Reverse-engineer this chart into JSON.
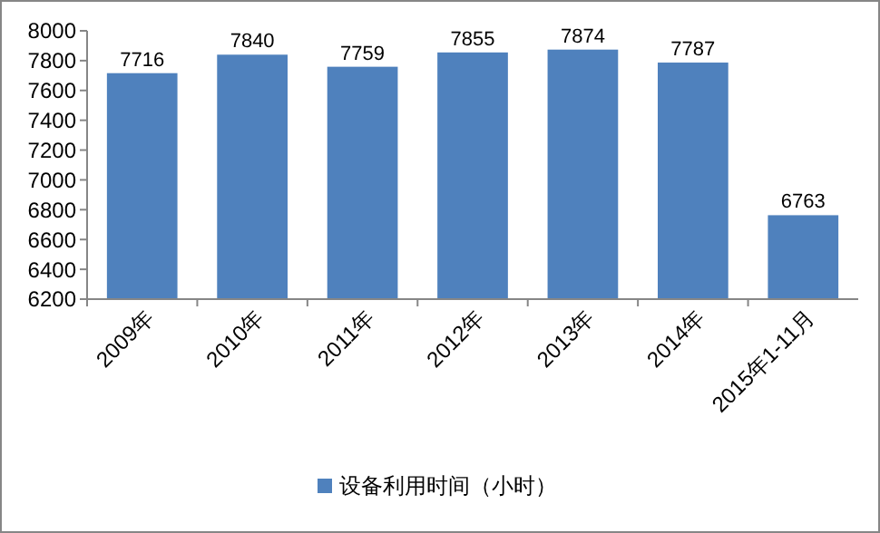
{
  "chart_data": {
    "type": "bar",
    "categories": [
      "2009年",
      "2010年",
      "2011年",
      "2012年",
      "2013年",
      "2014年",
      "2015年1-11月"
    ],
    "series": [
      {
        "name": "设备利用时间（小时）",
        "color": "#4f81bd",
        "values": [
          7716,
          7840,
          7759,
          7855,
          7874,
          7787,
          6763
        ]
      }
    ],
    "ylim": [
      6200,
      8000
    ],
    "yticks": [
      6200,
      6400,
      6600,
      6800,
      7000,
      7200,
      7400,
      7600,
      7800,
      8000
    ],
    "data_labels": true,
    "legend": "bottom",
    "grid": false
  }
}
